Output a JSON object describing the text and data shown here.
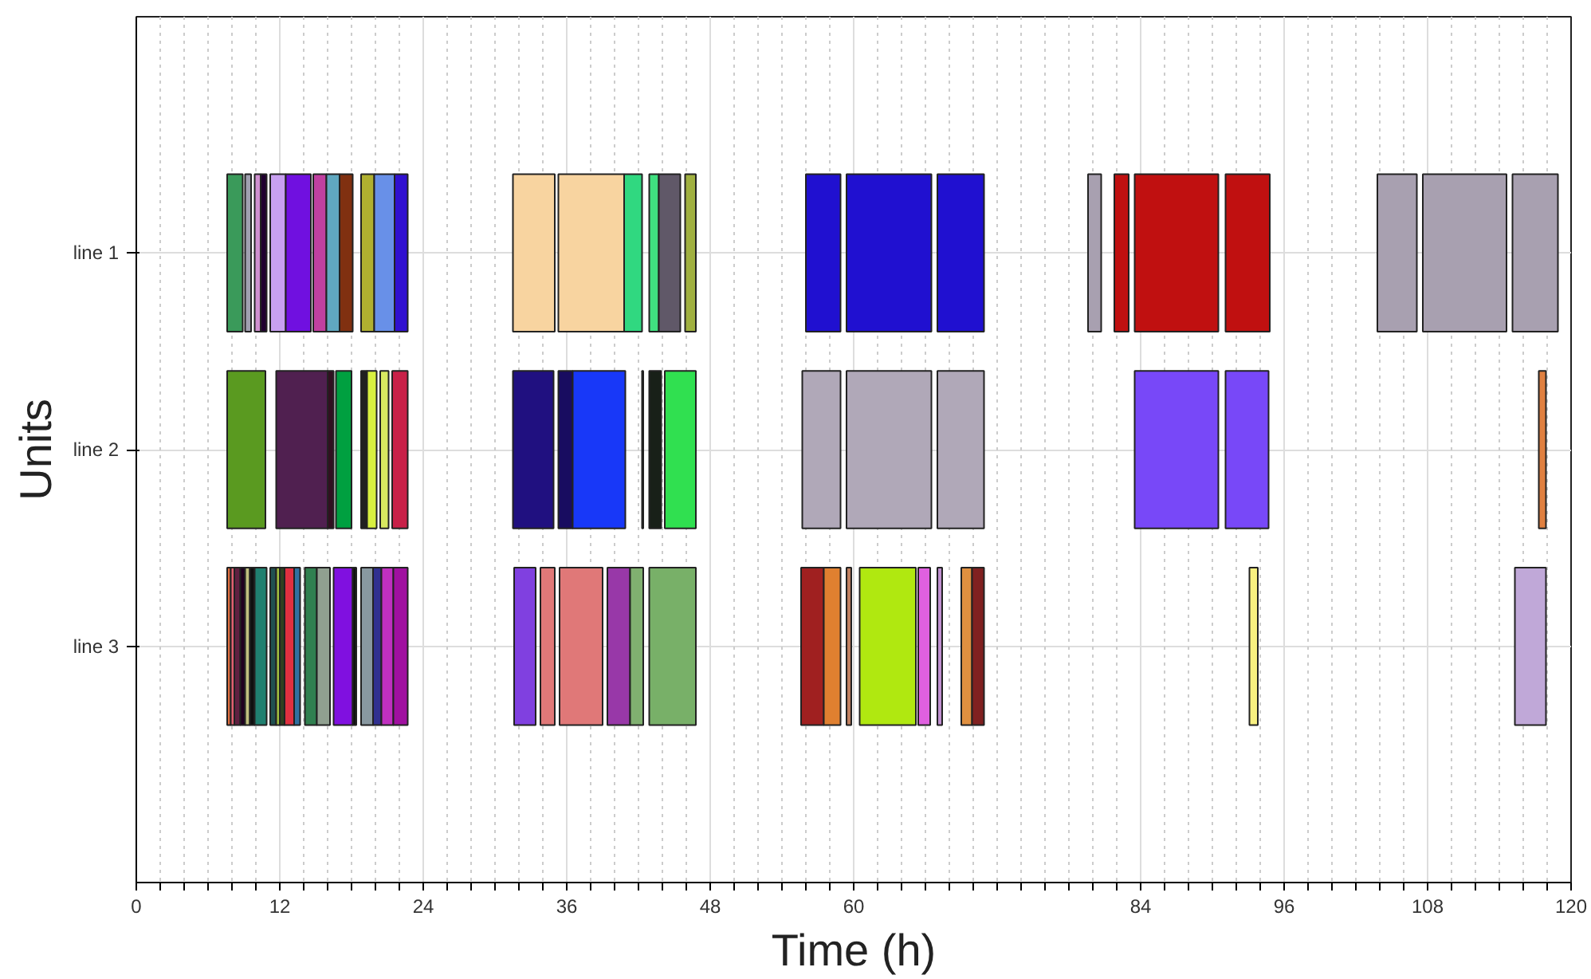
{
  "chart_data": {
    "type": "bar",
    "orientation": "horizontal",
    "xlabel": "Time (h)",
    "ylabel": "Units",
    "categories": [
      "line 1",
      "line 2",
      "line 3"
    ],
    "xlim": [
      0,
      120
    ],
    "xticks": [
      0,
      {
        "value": 2,
        "label": null
      },
      {
        "value": 4,
        "label": null
      },
      {
        "value": 6,
        "label": null
      },
      {
        "value": 8,
        "label": null
      },
      {
        "value": 10,
        "label": null
      },
      12,
      {
        "value": 14,
        "label": null
      },
      {
        "value": 16,
        "label": null
      },
      {
        "value": 18,
        "label": null
      },
      {
        "value": 20,
        "label": null
      },
      {
        "value": 22,
        "label": null
      },
      24,
      {
        "value": 26,
        "label": null
      },
      {
        "value": 28,
        "label": null
      },
      {
        "value": 30,
        "label": null
      },
      {
        "value": 32,
        "label": null
      },
      {
        "value": 34,
        "label": null
      },
      36,
      {
        "value": 38,
        "label": null
      },
      {
        "value": 40,
        "label": null
      },
      {
        "value": 42,
        "label": null
      },
      {
        "value": 44,
        "label": null
      },
      {
        "value": 46,
        "label": null
      },
      48,
      {
        "value": 50,
        "label": null
      },
      {
        "value": 52,
        "label": null
      },
      {
        "value": 54,
        "label": null
      },
      {
        "value": 56,
        "label": null
      },
      {
        "value": 58,
        "label": null
      },
      60,
      {
        "value": 62,
        "label": null
      },
      {
        "value": 64,
        "label": null
      },
      {
        "value": 66,
        "label": null
      },
      {
        "value": 68,
        "label": null
      },
      {
        "value": 70,
        "label": null
      },
      {
        "value": 72,
        "label": null
      },
      {
        "value": 74,
        "label": null
      },
      {
        "value": 76,
        "label": null
      },
      {
        "value": 78,
        "label": null
      },
      {
        "value": 80,
        "label": null
      },
      {
        "value": 82,
        "label": null
      },
      84,
      {
        "value": 86,
        "label": null
      },
      {
        "value": 88,
        "label": null
      },
      {
        "value": 90,
        "label": null
      },
      {
        "value": 92,
        "label": null
      },
      {
        "value": 94,
        "label": null
      },
      96,
      {
        "value": 98,
        "label": null
      },
      {
        "value": 100,
        "label": null
      },
      {
        "value": 102,
        "label": null
      },
      {
        "value": 104,
        "label": null
      },
      {
        "value": 106,
        "label": null
      },
      108,
      {
        "value": 110,
        "label": null
      },
      {
        "value": 112,
        "label": null
      },
      {
        "value": 114,
        "label": null
      },
      {
        "value": 116,
        "label": null
      },
      {
        "value": 118,
        "label": null
      },
      120
    ],
    "grid": true,
    "series": [
      {
        "color": "#3a9a5a",
        "base": [
          7.6,
          null,
          null
        ],
        "values": [
          1.3,
          null,
          null
        ]
      },
      {
        "color": "#a0a0b0",
        "base": [
          9.1,
          null,
          null
        ],
        "values": [
          0.5,
          null,
          null
        ]
      },
      {
        "color": "#d090d0",
        "base": [
          9.9,
          null,
          null
        ],
        "values": [
          0.5,
          null,
          null
        ]
      },
      {
        "color": "#200030",
        "base": [
          10.4,
          null,
          null
        ],
        "values": [
          0.5,
          null,
          null
        ]
      },
      {
        "color": "#c8a0f0",
        "base": [
          11.2,
          null,
          null
        ],
        "values": [
          1.3,
          null,
          null
        ]
      },
      {
        "color": "#7010e0",
        "base": [
          12.5,
          null,
          null
        ],
        "values": [
          2.1,
          null,
          null
        ]
      },
      {
        "color": "#c040a0",
        "base": [
          14.8,
          null,
          null
        ],
        "values": [
          1.1,
          null,
          null
        ]
      },
      {
        "color": "#60a8c0",
        "base": [
          15.9,
          null,
          null
        ],
        "values": [
          1.1,
          null,
          null
        ]
      },
      {
        "color": "#803010",
        "base": [
          17.0,
          null,
          null
        ],
        "values": [
          1.1,
          null,
          null
        ]
      },
      {
        "color": "#b0b030",
        "base": [
          18.8,
          null,
          null
        ],
        "values": [
          1.1,
          null,
          null
        ]
      },
      {
        "color": "#6890e8",
        "base": [
          19.9,
          null,
          null
        ],
        "values": [
          1.7,
          null,
          null
        ]
      },
      {
        "color": "#3010d0",
        "base": [
          21.6,
          null,
          null
        ],
        "values": [
          1.1,
          null,
          null
        ]
      },
      {
        "color": "#f8d4a0",
        "base": [
          31.5,
          null,
          null
        ],
        "values": [
          3.5,
          null,
          null
        ]
      },
      {
        "color": "#f8d4a0",
        "base": [
          35.3,
          null,
          null
        ],
        "values": [
          5.5,
          null,
          null
        ]
      },
      {
        "color": "#30d880",
        "base": [
          40.8,
          null,
          null
        ],
        "values": [
          1.5,
          null,
          null
        ]
      },
      {
        "color": "#40e080",
        "base": [
          42.9,
          null,
          null
        ],
        "values": [
          0.8,
          null,
          null
        ]
      },
      {
        "color": "#605868",
        "base": [
          43.7,
          null,
          null
        ],
        "values": [
          1.8,
          null,
          null
        ]
      },
      {
        "color": "#a0b040",
        "base": [
          45.9,
          null,
          null
        ],
        "values": [
          0.9,
          null,
          null
        ]
      },
      {
        "color": "#2010d0",
        "base": [
          56.0,
          null,
          null
        ],
        "values": [
          2.9,
          null,
          null
        ]
      },
      {
        "color": "#2010d0",
        "base": [
          59.4,
          null,
          null
        ],
        "values": [
          7.1,
          null,
          null
        ]
      },
      {
        "color": "#2010d0",
        "base": [
          67.0,
          null,
          null
        ],
        "values": [
          3.9,
          null,
          null
        ]
      },
      {
        "color": "#a8a0b0",
        "base": [
          79.6,
          null,
          null
        ],
        "values": [
          1.1,
          null,
          null
        ]
      },
      {
        "color": "#c01010",
        "base": [
          81.8,
          null,
          null
        ],
        "values": [
          1.2,
          null,
          null
        ]
      },
      {
        "color": "#c01010",
        "base": [
          83.5,
          null,
          null
        ],
        "values": [
          7.0,
          null,
          null
        ]
      },
      {
        "color": "#c01010",
        "base": [
          91.1,
          null,
          null
        ],
        "values": [
          3.7,
          null,
          null
        ]
      },
      {
        "color": "#a8a0b0",
        "base": [
          103.8,
          null,
          null
        ],
        "values": [
          3.3,
          null,
          null
        ]
      },
      {
        "color": "#a8a0b0",
        "base": [
          107.6,
          null,
          null
        ],
        "values": [
          7.0,
          null,
          null
        ]
      },
      {
        "color": "#a8a0b0",
        "base": [
          115.1,
          null,
          null
        ],
        "values": [
          3.8,
          null,
          null
        ]
      },
      {
        "color": "#5a9a20",
        "base": [
          null,
          7.6,
          null
        ],
        "values": [
          null,
          3.2,
          null
        ]
      },
      {
        "color": "#502050",
        "base": [
          null,
          11.7,
          null
        ],
        "values": [
          null,
          4.3,
          null
        ]
      },
      {
        "color": "#301020",
        "base": [
          null,
          16.0,
          null
        ],
        "values": [
          null,
          0.5,
          null
        ]
      },
      {
        "color": "#00a040",
        "base": [
          null,
          16.7,
          null
        ],
        "values": [
          null,
          1.3,
          null
        ]
      },
      {
        "color": "#202020",
        "base": [
          null,
          18.8,
          null
        ],
        "values": [
          null,
          0.5,
          null
        ]
      },
      {
        "color": "#d8f040",
        "base": [
          null,
          19.3,
          null
        ],
        "values": [
          null,
          0.8,
          null
        ]
      },
      {
        "color": "#d8e860",
        "base": [
          null,
          20.4,
          null
        ],
        "values": [
          null,
          0.7,
          null
        ]
      },
      {
        "color": "#c82048",
        "base": [
          null,
          21.4,
          null
        ],
        "values": [
          null,
          1.3,
          null
        ]
      },
      {
        "color": "#201080",
        "base": [
          null,
          31.5,
          null
        ],
        "values": [
          null,
          3.4,
          null
        ]
      },
      {
        "color": "#180c60",
        "base": [
          null,
          35.3,
          null
        ],
        "values": [
          null,
          1.2,
          null
        ]
      },
      {
        "color": "#1838f8",
        "base": [
          null,
          36.5,
          null
        ],
        "values": [
          null,
          4.4,
          null
        ]
      },
      {
        "color": "#808080",
        "base": [
          null,
          42.3,
          null
        ],
        "values": [
          null,
          0.1,
          null
        ]
      },
      {
        "color": "#182018",
        "base": [
          null,
          42.9,
          null
        ],
        "values": [
          null,
          1.0,
          null
        ]
      },
      {
        "color": "#30e050",
        "base": [
          null,
          44.2,
          null
        ],
        "values": [
          null,
          2.6,
          null
        ]
      },
      {
        "color": "#b0a8b8",
        "base": [
          null,
          55.7,
          null
        ],
        "values": [
          null,
          3.2,
          null
        ]
      },
      {
        "color": "#b0a8b8",
        "base": [
          null,
          59.4,
          null
        ],
        "values": [
          null,
          7.1,
          null
        ]
      },
      {
        "color": "#b0a8b8",
        "base": [
          null,
          67.0,
          null
        ],
        "values": [
          null,
          3.9,
          null
        ]
      },
      {
        "color": "#7848f8",
        "base": [
          null,
          83.5,
          null
        ],
        "values": [
          null,
          7.0,
          null
        ]
      },
      {
        "color": "#7848f8",
        "base": [
          null,
          91.1,
          null
        ],
        "values": [
          null,
          3.6,
          null
        ]
      },
      {
        "color": "#e08040",
        "base": [
          null,
          117.3,
          null
        ],
        "values": [
          null,
          0.6,
          null
        ]
      },
      {
        "color": "#e07040",
        "base": [
          null,
          null,
          7.6
        ],
        "values": [
          null,
          null,
          0.3
        ]
      },
      {
        "color": "#e06070",
        "base": [
          null,
          null,
          7.9
        ],
        "values": [
          null,
          null,
          0.3
        ]
      },
      {
        "color": "#602040",
        "base": [
          null,
          null,
          8.2
        ],
        "values": [
          null,
          null,
          0.5
        ]
      },
      {
        "color": "#200020",
        "base": [
          null,
          null,
          8.7
        ],
        "values": [
          null,
          null,
          0.4
        ]
      },
      {
        "color": "#c0c080",
        "base": [
          null,
          null,
          9.1
        ],
        "values": [
          null,
          null,
          0.4
        ]
      },
      {
        "color": "#101010",
        "base": [
          null,
          null,
          9.5
        ],
        "values": [
          null,
          null,
          0.4
        ]
      },
      {
        "color": "#208070",
        "base": [
          null,
          null,
          9.9
        ],
        "values": [
          null,
          null,
          1.0
        ]
      },
      {
        "color": "#205050",
        "base": [
          null,
          null,
          11.2
        ],
        "values": [
          null,
          null,
          0.5
        ]
      },
      {
        "color": "#a0c040",
        "base": [
          null,
          null,
          11.7
        ],
        "values": [
          null,
          null,
          0.3
        ]
      },
      {
        "color": "#304020",
        "base": [
          null,
          null,
          12.0
        ],
        "values": [
          null,
          null,
          0.4
        ]
      },
      {
        "color": "#e03040",
        "base": [
          null,
          null,
          12.4
        ],
        "values": [
          null,
          null,
          0.8
        ]
      },
      {
        "color": "#3070a0",
        "base": [
          null,
          null,
          13.2
        ],
        "values": [
          null,
          null,
          0.5
        ]
      },
      {
        "color": "#308050",
        "base": [
          null,
          null,
          14.1
        ],
        "values": [
          null,
          null,
          1.0
        ]
      },
      {
        "color": "#90a090",
        "base": [
          null,
          null,
          15.1
        ],
        "values": [
          null,
          null,
          1.1
        ]
      },
      {
        "color": "#8010e0",
        "base": [
          null,
          null,
          16.5
        ],
        "values": [
          null,
          null,
          1.6
        ]
      },
      {
        "color": "#101010",
        "base": [
          null,
          null,
          18.1
        ],
        "values": [
          null,
          null,
          0.3
        ]
      },
      {
        "color": "#8898a0",
        "base": [
          null,
          null,
          18.8
        ],
        "values": [
          null,
          null,
          1.0
        ]
      },
      {
        "color": "#303090",
        "base": [
          null,
          null,
          19.8
        ],
        "values": [
          null,
          null,
          0.7
        ]
      },
      {
        "color": "#c030c0",
        "base": [
          null,
          null,
          20.5
        ],
        "values": [
          null,
          null,
          1.0
        ]
      },
      {
        "color": "#a010a0",
        "base": [
          null,
          null,
          21.5
        ],
        "values": [
          null,
          null,
          1.2
        ]
      },
      {
        "color": "#8040e0",
        "base": [
          null,
          null,
          31.6
        ],
        "values": [
          null,
          null,
          1.8
        ]
      },
      {
        "color": "#e07878",
        "base": [
          null,
          null,
          33.8
        ],
        "values": [
          null,
          null,
          1.2
        ]
      },
      {
        "color": "#e07878",
        "base": [
          null,
          null,
          35.4
        ],
        "values": [
          null,
          null,
          3.6
        ]
      },
      {
        "color": "#9838a8",
        "base": [
          null,
          null,
          39.4
        ],
        "values": [
          null,
          null,
          1.9
        ]
      },
      {
        "color": "#80b070",
        "base": [
          null,
          null,
          41.3
        ],
        "values": [
          null,
          null,
          1.1
        ]
      },
      {
        "color": "#78b068",
        "base": [
          null,
          null,
          42.9
        ],
        "values": [
          null,
          null,
          3.9
        ]
      },
      {
        "color": "#a02020",
        "base": [
          null,
          null,
          55.6
        ],
        "values": [
          null,
          null,
          1.9
        ]
      },
      {
        "color": "#e08030",
        "base": [
          null,
          null,
          57.5
        ],
        "values": [
          null,
          null,
          1.4
        ]
      },
      {
        "color": "#c08060",
        "base": [
          null,
          null,
          59.4
        ],
        "values": [
          null,
          null,
          0.4
        ]
      },
      {
        "color": "#b0e810",
        "base": [
          null,
          null,
          60.5
        ],
        "values": [
          null,
          null,
          4.7
        ]
      },
      {
        "color": "#e060e0",
        "base": [
          null,
          null,
          65.4
        ],
        "values": [
          null,
          null,
          1.0
        ]
      },
      {
        "color": "#c090d0",
        "base": [
          null,
          null,
          67.0
        ],
        "values": [
          null,
          null,
          0.4
        ]
      },
      {
        "color": "#e09040",
        "base": [
          null,
          null,
          69.0
        ],
        "values": [
          null,
          null,
          0.9
        ]
      },
      {
        "color": "#802020",
        "base": [
          null,
          null,
          69.9
        ],
        "values": [
          null,
          null,
          1.0
        ]
      },
      {
        "color": "#f8f080",
        "base": [
          null,
          null,
          93.1
        ],
        "values": [
          null,
          null,
          0.7
        ]
      },
      {
        "color": "#c0a8d8",
        "base": [
          null,
          null,
          115.3
        ],
        "values": [
          null,
          null,
          2.6
        ]
      }
    ]
  }
}
